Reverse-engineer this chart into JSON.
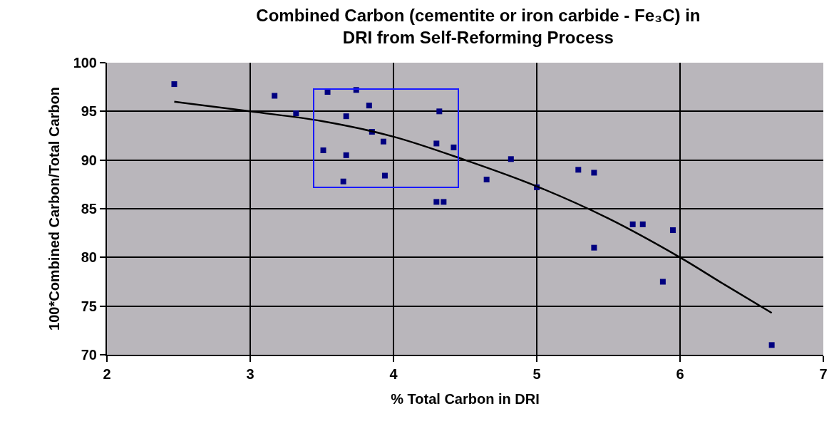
{
  "chart_data": {
    "type": "scatter",
    "title": "Combined Carbon (cementite or iron carbide - Fe₃C) in\nDRI from Self-Reforming Process",
    "xlabel": "% Total Carbon in DRI",
    "ylabel": "100*Combined Carbon/Total Carbon",
    "xlim": [
      2,
      7
    ],
    "xticks": [
      2,
      3,
      4,
      5,
      6,
      7
    ],
    "ylim": [
      70,
      100
    ],
    "yticks": [
      70,
      75,
      80,
      85,
      90,
      95,
      100
    ],
    "grid": true,
    "marker": "square",
    "series": [
      {
        "color": "#000080",
        "x": [
          2.47,
          3.17,
          3.32,
          3.54,
          3.74,
          3.83,
          3.67,
          3.85,
          3.93,
          3.51,
          3.67,
          3.65,
          3.94,
          4.32,
          4.3,
          4.42,
          4.3,
          4.35,
          4.82,
          4.65,
          5.0,
          5.29,
          5.4,
          5.4,
          5.67,
          5.74,
          5.95,
          5.88,
          6.64
        ],
        "values": [
          97.8,
          96.6,
          94.8,
          97.0,
          97.2,
          95.6,
          94.5,
          92.9,
          91.9,
          91.0,
          90.5,
          87.8,
          88.4,
          95.0,
          91.7,
          91.3,
          85.7,
          85.7,
          90.1,
          88.0,
          87.2,
          89.0,
          88.7,
          81.0,
          83.4,
          83.4,
          82.8,
          77.5,
          71.0
        ]
      },
      {
        "type": "line",
        "color": "#000000",
        "marker": "none",
        "x": [
          2.47,
          3,
          3.5,
          4,
          4.5,
          5,
          5.5,
          6,
          6.3,
          6.64
        ],
        "values": [
          96,
          95,
          94.0,
          92.4,
          90,
          87.3,
          84,
          80,
          77.3,
          74.3
        ]
      }
    ]
  }
}
